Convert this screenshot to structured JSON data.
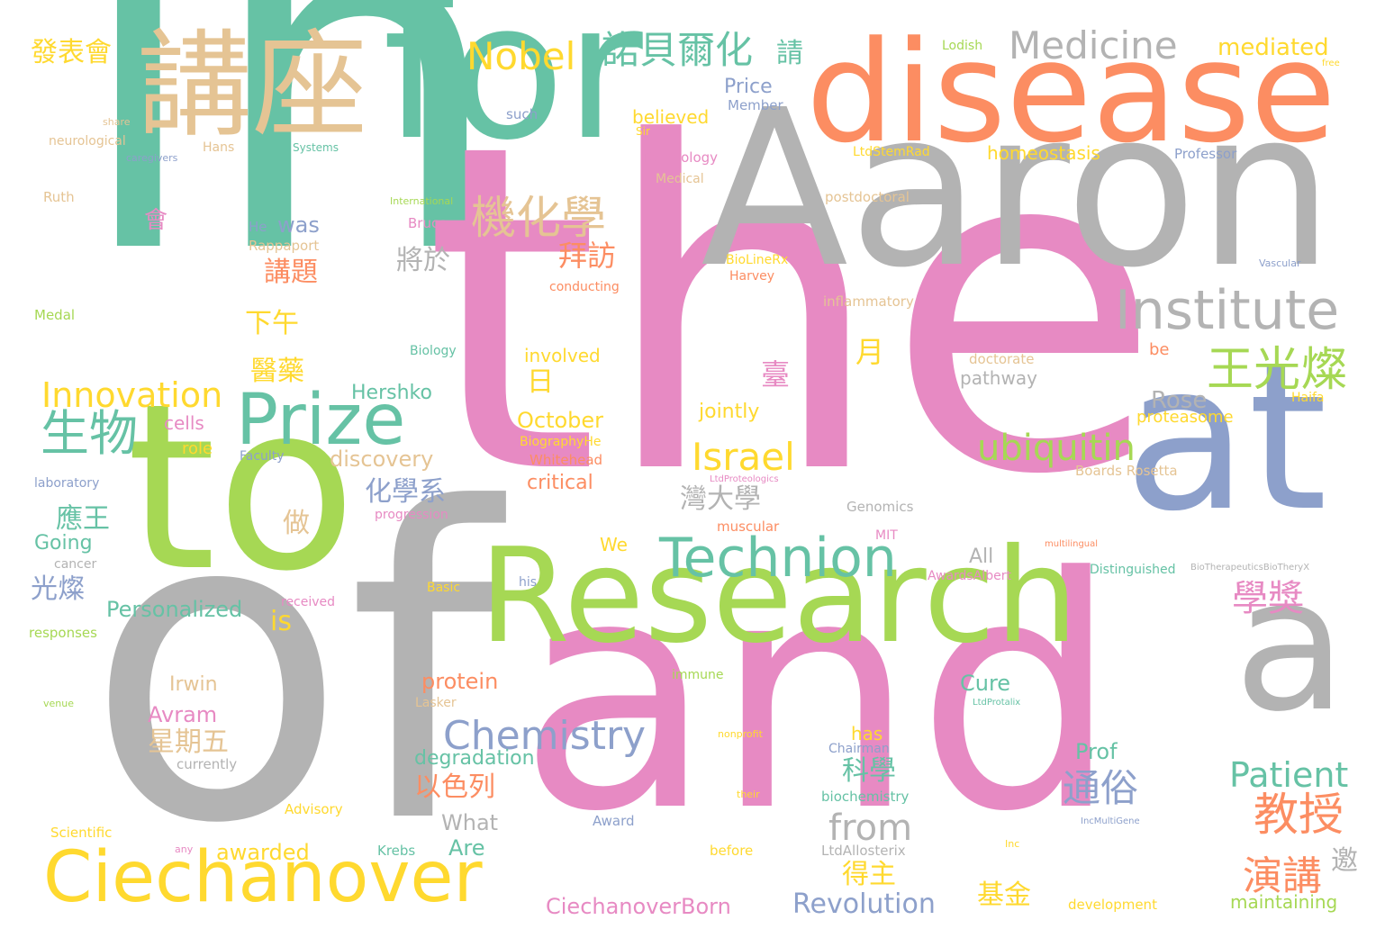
{
  "title": "",
  "palette": {
    "teal": "#66c2a5",
    "orange": "#fc8d62",
    "blue": "#8da0cb",
    "pink": "#e78ac3",
    "green": "#a6d854",
    "yellow": "#ffd92f",
    "tan": "#e5c494",
    "gray": "#b3b3b3"
  },
  "words": [
    {
      "text": "in",
      "color": "teal"
    },
    {
      "text": "the",
      "color": "pink"
    },
    {
      "text": "of",
      "color": "gray"
    },
    {
      "text": "and",
      "color": "pink"
    },
    {
      "text": "Aaron",
      "color": "gray"
    },
    {
      "text": "to",
      "color": "green"
    },
    {
      "text": "Research",
      "color": "green"
    },
    {
      "text": "for",
      "color": "teal"
    },
    {
      "text": "disease",
      "color": "orange"
    },
    {
      "text": "at",
      "color": "blue"
    },
    {
      "text": "a",
      "color": "gray"
    },
    {
      "text": "講座",
      "color": "tan"
    },
    {
      "text": "Ciechanover",
      "color": "yellow"
    },
    {
      "text": "Prize",
      "color": "teal"
    },
    {
      "text": "Technion",
      "color": "teal"
    },
    {
      "text": "Institute",
      "color": "gray"
    },
    {
      "text": "Medicine",
      "color": "gray"
    },
    {
      "text": "Nobel",
      "color": "yellow"
    },
    {
      "text": "諾貝爾化",
      "color": "teal"
    },
    {
      "text": "機化學",
      "color": "tan"
    },
    {
      "text": "王光燦",
      "color": "green"
    },
    {
      "text": "ubiquitin",
      "color": "green"
    },
    {
      "text": "Innovation",
      "color": "yellow"
    },
    {
      "text": "生物",
      "color": "teal"
    },
    {
      "text": "Israel",
      "color": "yellow"
    },
    {
      "text": "Chemistry",
      "color": "blue"
    },
    {
      "text": "Patient",
      "color": "teal"
    },
    {
      "text": "教授",
      "color": "orange"
    },
    {
      "text": "通俗",
      "color": "blue"
    },
    {
      "text": "from",
      "color": "gray"
    },
    {
      "text": "Revolution",
      "color": "blue"
    },
    {
      "text": "演講",
      "color": "orange"
    },
    {
      "text": "學獎",
      "color": "pink"
    },
    {
      "text": "發表會",
      "color": "yellow"
    },
    {
      "text": "請",
      "color": "teal"
    },
    {
      "text": "mediated",
      "color": "yellow"
    },
    {
      "text": "Lodish",
      "color": "green"
    },
    {
      "text": "free",
      "color": "yellow"
    },
    {
      "text": "Price",
      "color": "blue"
    },
    {
      "text": "Member",
      "color": "blue"
    },
    {
      "text": "believed",
      "color": "yellow"
    },
    {
      "text": "Sir",
      "color": "yellow"
    },
    {
      "text": "such",
      "color": "blue"
    },
    {
      "text": "share",
      "color": "tan"
    },
    {
      "text": "neurological",
      "color": "tan"
    },
    {
      "text": "Hans",
      "color": "tan"
    },
    {
      "text": "Systems",
      "color": "teal"
    },
    {
      "text": "caregivers",
      "color": "blue"
    },
    {
      "text": "Technology",
      "color": "pink"
    },
    {
      "text": "Medical",
      "color": "tan"
    },
    {
      "text": "homeostasis",
      "color": "yellow"
    },
    {
      "text": "LtdStemRad",
      "color": "yellow"
    },
    {
      "text": "Professor",
      "color": "blue"
    },
    {
      "text": "Ruth",
      "color": "tan"
    },
    {
      "text": "International",
      "color": "green"
    },
    {
      "text": "postdoctoral",
      "color": "tan"
    },
    {
      "text": "會",
      "color": "pink"
    },
    {
      "text": "He",
      "color": "blue"
    },
    {
      "text": "was",
      "color": "blue"
    },
    {
      "text": "Bruce",
      "color": "pink"
    },
    {
      "text": "Rappaport",
      "color": "tan"
    },
    {
      "text": "將於",
      "color": "gray"
    },
    {
      "text": "拜訪",
      "color": "orange"
    },
    {
      "text": "講題",
      "color": "orange"
    },
    {
      "text": "BioLineRx",
      "color": "yellow"
    },
    {
      "text": "Harvey",
      "color": "orange"
    },
    {
      "text": "Vascular",
      "color": "blue"
    },
    {
      "text": "conducting",
      "color": "orange"
    },
    {
      "text": "inflammatory",
      "color": "tan"
    },
    {
      "text": "Medal",
      "color": "green"
    },
    {
      "text": "下午",
      "color": "yellow"
    },
    {
      "text": "月",
      "color": "yellow"
    },
    {
      "text": "Biology",
      "color": "teal"
    },
    {
      "text": "involved",
      "color": "yellow"
    },
    {
      "text": "doctorate",
      "color": "tan"
    },
    {
      "text": "be",
      "color": "orange"
    },
    {
      "text": "醫藥",
      "color": "yellow"
    },
    {
      "text": "臺",
      "color": "pink"
    },
    {
      "text": "pathway",
      "color": "gray"
    },
    {
      "text": "日",
      "color": "yellow"
    },
    {
      "text": "Hershko",
      "color": "teal"
    },
    {
      "text": "Rose",
      "color": "gray"
    },
    {
      "text": "Haifa",
      "color": "yellow"
    },
    {
      "text": "cells",
      "color": "pink"
    },
    {
      "text": "jointly",
      "color": "yellow"
    },
    {
      "text": "October",
      "color": "yellow"
    },
    {
      "text": "proteasome",
      "color": "yellow"
    },
    {
      "text": "role",
      "color": "yellow"
    },
    {
      "text": "BiographyHe",
      "color": "yellow"
    },
    {
      "text": "Faculty",
      "color": "blue"
    },
    {
      "text": "discovery",
      "color": "tan"
    },
    {
      "text": "Whitehead",
      "color": "orange"
    },
    {
      "text": "Boards",
      "color": "tan"
    },
    {
      "text": "Rosetta",
      "color": "tan"
    },
    {
      "text": "laboratory",
      "color": "blue"
    },
    {
      "text": "LtdProteologics",
      "color": "pink"
    },
    {
      "text": "critical",
      "color": "orange"
    },
    {
      "text": "化學系",
      "color": "blue"
    },
    {
      "text": "灣大學",
      "color": "gray"
    },
    {
      "text": "應王",
      "color": "teal"
    },
    {
      "text": "Genomics",
      "color": "gray"
    },
    {
      "text": "progression",
      "color": "pink"
    },
    {
      "text": "做",
      "color": "tan"
    },
    {
      "text": "muscular",
      "color": "orange"
    },
    {
      "text": "Going",
      "color": "teal"
    },
    {
      "text": "We",
      "color": "yellow"
    },
    {
      "text": "MIT",
      "color": "pink"
    },
    {
      "text": "multilingual",
      "color": "orange"
    },
    {
      "text": "cancer",
      "color": "gray"
    },
    {
      "text": "All",
      "color": "gray"
    },
    {
      "text": "Distinguished",
      "color": "teal"
    },
    {
      "text": "BioTherapeutics",
      "color": "gray"
    },
    {
      "text": "BioTheryX",
      "color": "gray"
    },
    {
      "text": "光燦",
      "color": "blue"
    },
    {
      "text": "his",
      "color": "blue"
    },
    {
      "text": "Basic",
      "color": "yellow"
    },
    {
      "text": "Awards",
      "color": "pink"
    },
    {
      "text": "Albert",
      "color": "pink"
    },
    {
      "text": "Personalized",
      "color": "teal"
    },
    {
      "text": "received",
      "color": "pink"
    },
    {
      "text": "is",
      "color": "yellow"
    },
    {
      "text": "responses",
      "color": "green"
    },
    {
      "text": "Irwin",
      "color": "tan"
    },
    {
      "text": "protein",
      "color": "orange"
    },
    {
      "text": "immune",
      "color": "green"
    },
    {
      "text": "LtdProtalix",
      "color": "teal"
    },
    {
      "text": "Cure",
      "color": "teal"
    },
    {
      "text": "venue",
      "color": "green"
    },
    {
      "text": "Avram",
      "color": "pink"
    },
    {
      "text": "Lasker",
      "color": "tan"
    },
    {
      "text": "星期五",
      "color": "tan"
    },
    {
      "text": "nonprofit",
      "color": "yellow"
    },
    {
      "text": "has",
      "color": "yellow"
    },
    {
      "text": "Chairman",
      "color": "blue"
    },
    {
      "text": "Prof",
      "color": "teal"
    },
    {
      "text": "degradation",
      "color": "teal"
    },
    {
      "text": "currently",
      "color": "gray"
    },
    {
      "text": "科學",
      "color": "teal"
    },
    {
      "text": "以色列",
      "color": "orange"
    },
    {
      "text": "their",
      "color": "yellow"
    },
    {
      "text": "biochemistry",
      "color": "teal"
    },
    {
      "text": "Advisory",
      "color": "yellow"
    },
    {
      "text": "What",
      "color": "gray"
    },
    {
      "text": "Scientific",
      "color": "yellow"
    },
    {
      "text": "Award",
      "color": "blue"
    },
    {
      "text": "IncMultiGene",
      "color": "blue"
    },
    {
      "text": "any",
      "color": "pink"
    },
    {
      "text": "awarded",
      "color": "yellow"
    },
    {
      "text": "Krebs",
      "color": "teal"
    },
    {
      "text": "Are",
      "color": "teal"
    },
    {
      "text": "before",
      "color": "yellow"
    },
    {
      "text": "LtdAllosterix",
      "color": "gray"
    },
    {
      "text": "Inc",
      "color": "yellow"
    },
    {
      "text": "得主",
      "color": "yellow"
    },
    {
      "text": "邀",
      "color": "gray"
    },
    {
      "text": "基金",
      "color": "yellow"
    },
    {
      "text": "CiechanoverBorn",
      "color": "pink"
    },
    {
      "text": "development",
      "color": "yellow"
    },
    {
      "text": "maintaining",
      "color": "green"
    }
  ]
}
